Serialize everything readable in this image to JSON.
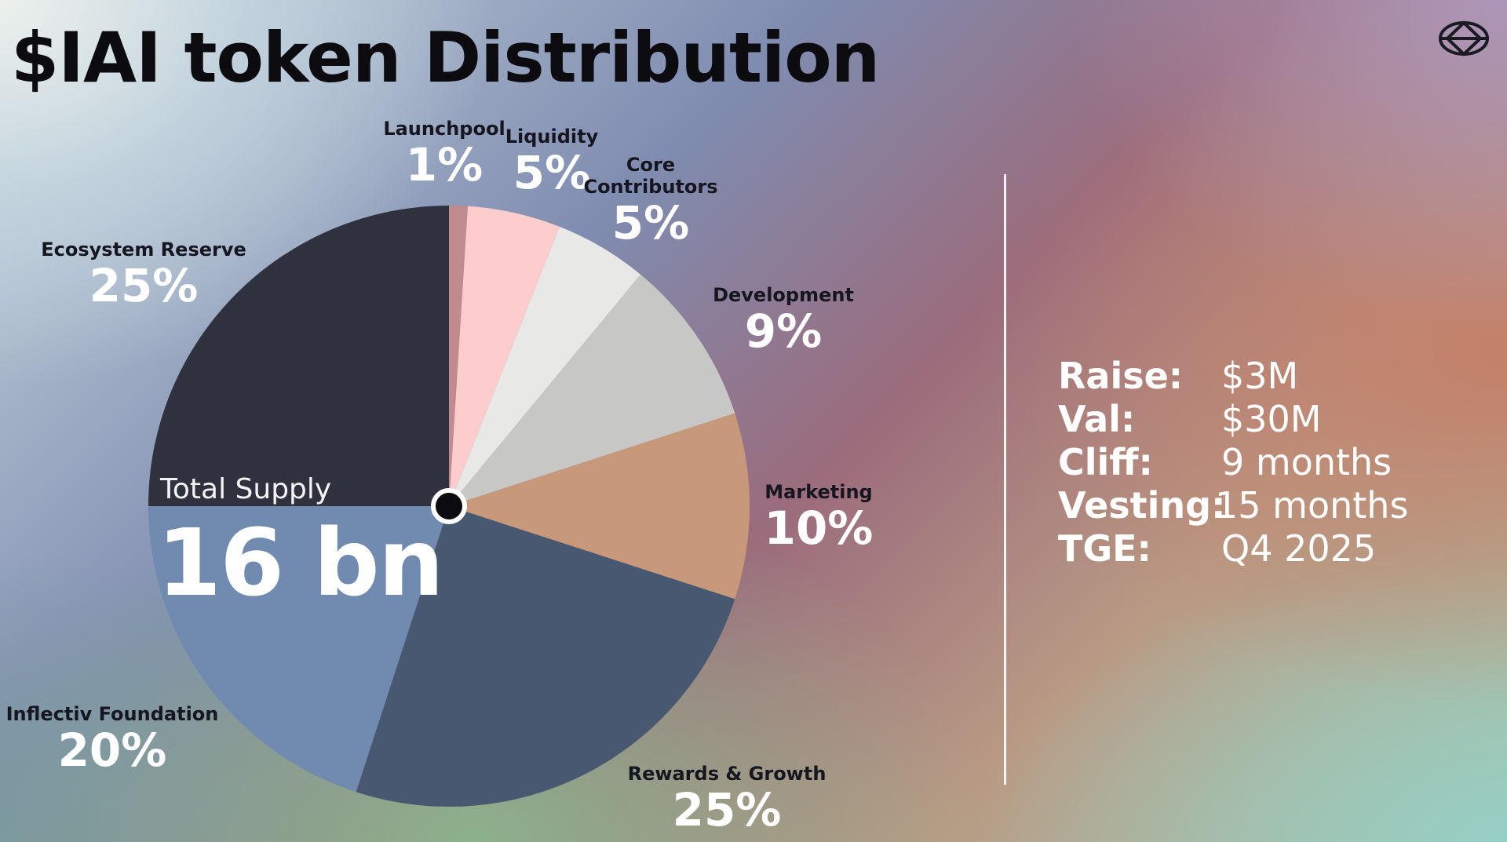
{
  "title": "$IAI token Distribution",
  "logo_icon": "globe-grid-icon",
  "total_supply": {
    "label": "Total Supply",
    "value": "16 bn"
  },
  "chart_data": {
    "type": "pie",
    "title": "$IAI token Distribution",
    "slices": [
      {
        "name": "Launchpool",
        "value": 1,
        "label": "1%",
        "color": "#c08a8e"
      },
      {
        "name": "Liquidity",
        "value": 5,
        "label": "5%",
        "color": "#fdcccc"
      },
      {
        "name": "Core Contributors",
        "value": 5,
        "label": "5%",
        "color": "#e8e8e6"
      },
      {
        "name": "Development",
        "value": 9,
        "label": "9%",
        "color": "#c7c7c5"
      },
      {
        "name": "Marketing",
        "value": 10,
        "label": "10%",
        "color": "#c8987a"
      },
      {
        "name": "Rewards & Growth",
        "value": 25,
        "label": "25%",
        "color": "#485870"
      },
      {
        "name": "Inflectiv Foundation",
        "value": 20,
        "label": "20%",
        "color": "#708ab0"
      },
      {
        "name": "Ecosystem Reserve",
        "value": 25,
        "label": "25%",
        "color": "#30313e"
      }
    ]
  },
  "stats": [
    {
      "key": "Raise:",
      "value": "$3M"
    },
    {
      "key": "Val:",
      "value": "$30M"
    },
    {
      "key": "Cliff:",
      "value": "9 months"
    },
    {
      "key": "Vesting:",
      "value": "15 months"
    },
    {
      "key": "TGE:",
      "value": "Q4 2025"
    }
  ]
}
